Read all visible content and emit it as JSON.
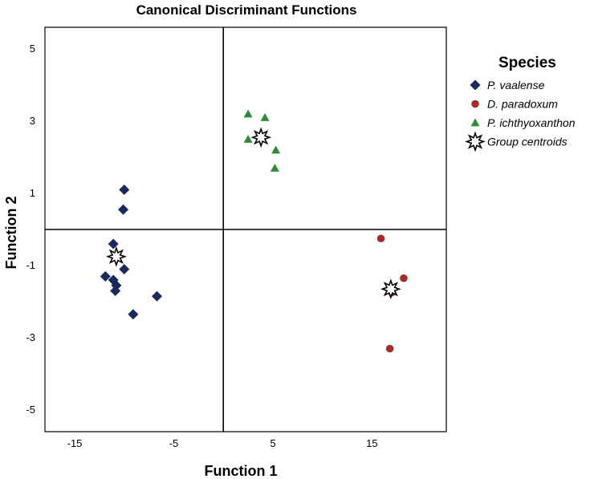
{
  "chart_data": {
    "type": "scatter",
    "title": "Canonical Discriminant Functions",
    "xlabel": "Function 1",
    "ylabel": "Function 2",
    "xlim": [
      -18,
      22.5
    ],
    "ylim": [
      -5.6,
      5.6
    ],
    "x_ticks": [
      -15,
      -5,
      5,
      15
    ],
    "y_ticks": [
      5,
      3,
      1,
      -1,
      -3,
      -5
    ],
    "reference_lines": {
      "x": 0,
      "y": 0
    },
    "grid": false,
    "legend": {
      "title": "Species",
      "position": "right"
    },
    "series": [
      {
        "name": "P. vaalense",
        "marker": "diamond",
        "color": "#1a2a5c",
        "points": [
          [
            -10.0,
            1.1
          ],
          [
            -10.1,
            0.55
          ],
          [
            -11.1,
            -0.4
          ],
          [
            -10.0,
            -1.1
          ],
          [
            -11.9,
            -1.3
          ],
          [
            -11.1,
            -1.4
          ],
          [
            -10.8,
            -1.55
          ],
          [
            -10.9,
            -1.7
          ],
          [
            -6.7,
            -1.85
          ],
          [
            -9.1,
            -2.35
          ]
        ]
      },
      {
        "name": "D. paradoxum",
        "marker": "circle",
        "color": "#a52a2a",
        "points": [
          [
            15.9,
            -0.25
          ],
          [
            18.2,
            -1.35
          ],
          [
            17.0,
            -1.75
          ],
          [
            16.8,
            -3.3
          ]
        ]
      },
      {
        "name": "P. ichthyoxanthon",
        "marker": "triangle",
        "color": "#2e8b3e",
        "points": [
          [
            2.5,
            3.2
          ],
          [
            4.2,
            3.1
          ],
          [
            2.5,
            2.5
          ],
          [
            5.3,
            2.2
          ],
          [
            5.2,
            1.7
          ]
        ]
      },
      {
        "name": "Group centroids",
        "marker": "star",
        "color": "#000000",
        "points": [
          [
            -10.8,
            -0.75
          ],
          [
            3.8,
            2.55
          ],
          [
            16.9,
            -1.65
          ]
        ]
      }
    ]
  }
}
